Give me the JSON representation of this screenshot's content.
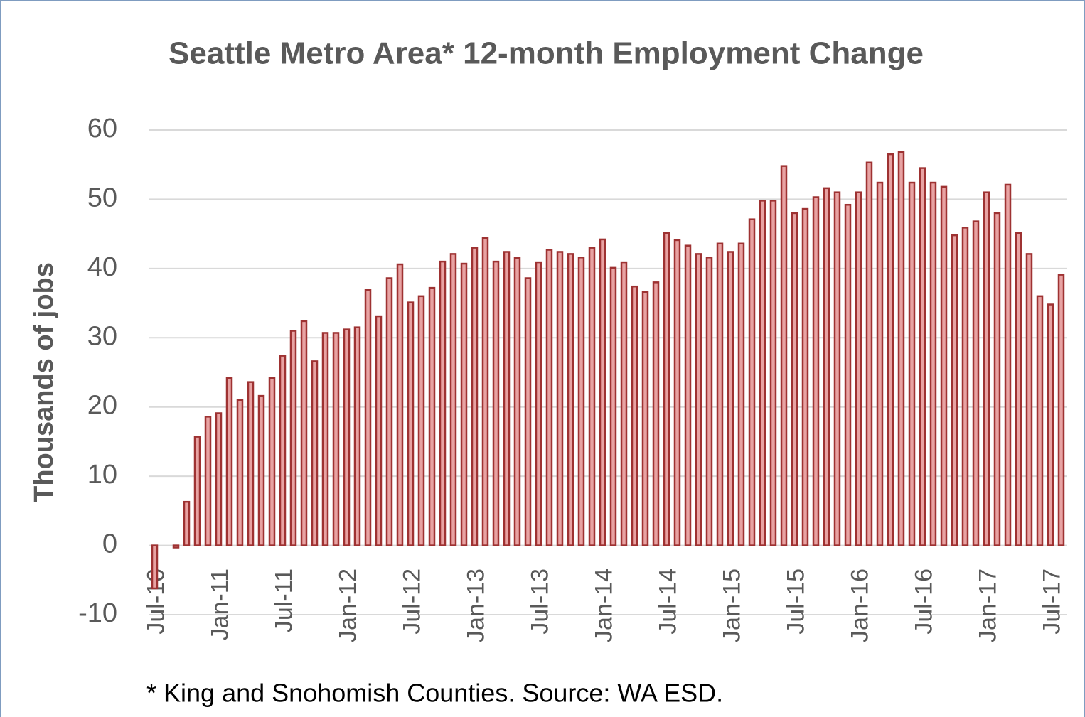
{
  "chart_data": {
    "type": "bar",
    "title": "Seattle Metro Area* 12-month Employment  Change",
    "y_label": "Thousands of jobs",
    "footnote": "* King and Snohomish Counties.  Source: WA ESD.",
    "categories": [
      "Jul-10",
      null,
      null,
      null,
      null,
      null,
      "Jan-11",
      null,
      null,
      null,
      null,
      null,
      "Jul-11",
      null,
      null,
      null,
      null,
      null,
      "Jan-12",
      null,
      null,
      null,
      null,
      null,
      "Jul-12",
      null,
      null,
      null,
      null,
      null,
      "Jan-13",
      null,
      null,
      null,
      null,
      null,
      "Jul-13",
      null,
      null,
      null,
      null,
      null,
      "Jan-14",
      null,
      null,
      null,
      null,
      null,
      "Jul-14",
      null,
      null,
      null,
      null,
      null,
      "Jan-15",
      null,
      null,
      null,
      null,
      null,
      "Jul-15",
      null,
      null,
      null,
      null,
      null,
      "Jan-16",
      null,
      null,
      null,
      null,
      null,
      "Jul-16",
      null,
      null,
      null,
      null,
      null,
      "Jan-17",
      null,
      null,
      null,
      null,
      null,
      "Jul-17",
      null
    ],
    "values": [
      -6.2,
      0,
      -0.3,
      6.3,
      15.7,
      18.6,
      19.1,
      24.2,
      21.0,
      23.6,
      21.6,
      24.2,
      27.4,
      31.0,
      32.4,
      26.6,
      30.7,
      30.7,
      31.2,
      31.5,
      36.9,
      33.1,
      38.6,
      40.6,
      35.1,
      36.0,
      37.2,
      41.0,
      42.1,
      40.7,
      43.0,
      44.4,
      41.0,
      42.4,
      41.5,
      38.6,
      40.9,
      42.7,
      42.4,
      42.1,
      41.6,
      43.0,
      44.2,
      40.1,
      40.9,
      37.4,
      36.6,
      38.0,
      45.1,
      44.1,
      43.3,
      42.1,
      41.6,
      43.6,
      42.4,
      43.6,
      47.1,
      49.8,
      49.8,
      54.8,
      48.0,
      48.6,
      50.3,
      51.6,
      51.0,
      49.2,
      51.0,
      55.3,
      52.4,
      56.5,
      56.8,
      52.4,
      54.5,
      52.4,
      51.8,
      44.8,
      45.9,
      46.8,
      51.0,
      48.0,
      52.1,
      45.1,
      42.1,
      36.0,
      34.8,
      39.1
    ],
    "color": "#e8a3a3",
    "edge_color": "#9e3232",
    "ylim": [
      -10,
      60
    ],
    "yticks": [
      -10,
      0,
      10,
      20,
      30,
      40,
      50,
      60
    ],
    "grid": true
  }
}
